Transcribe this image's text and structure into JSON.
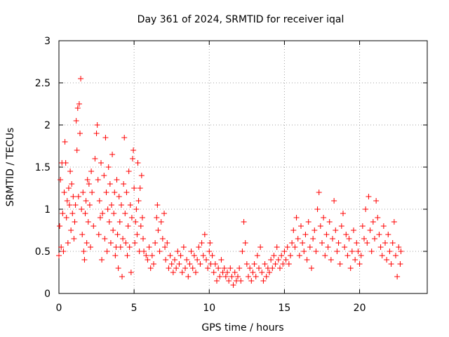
{
  "chart_data": {
    "type": "scatter",
    "title": "Day 361 of 2024, SRMTID for receiver iqal",
    "xlabel": "GPS time / hours",
    "ylabel": "SRMTID / TECUs",
    "xlim": [
      0,
      24.5
    ],
    "ylim": [
      0,
      3
    ],
    "xticks": [
      0,
      5,
      10,
      15,
      20
    ],
    "yticks": [
      0,
      0.5,
      1,
      1.5,
      2,
      2.5,
      3
    ],
    "xtick_labels": [
      "0",
      "5",
      "10",
      "15",
      "20"
    ],
    "ytick_labels": [
      "0",
      "0.5",
      "1",
      "1.5",
      "2",
      "2.5",
      "3"
    ],
    "grid": true,
    "marker": "+",
    "series": [
      {
        "name": "SRMTID",
        "color": "#ff0000",
        "points": [
          [
            0.0,
            0.45
          ],
          [
            0.05,
            0.8
          ],
          [
            0.1,
            1.35
          ],
          [
            0.15,
            0.55
          ],
          [
            0.2,
            1.55
          ],
          [
            0.25,
            0.95
          ],
          [
            0.3,
            0.5
          ],
          [
            0.35,
            1.2
          ],
          [
            0.4,
            1.8
          ],
          [
            0.45,
            1.55
          ],
          [
            0.5,
            0.9
          ],
          [
            0.55,
            1.1
          ],
          [
            0.6,
            0.6
          ],
          [
            0.65,
            1.25
          ],
          [
            0.7,
            1.05
          ],
          [
            0.75,
            1.45
          ],
          [
            0.8,
            0.75
          ],
          [
            0.85,
            1.3
          ],
          [
            0.9,
            0.95
          ],
          [
            0.95,
            1.15
          ],
          [
            1.0,
            0.65
          ],
          [
            1.05,
            0.85
          ],
          [
            1.1,
            1.05
          ],
          [
            1.15,
            2.05
          ],
          [
            1.2,
            1.7
          ],
          [
            1.25,
            2.2
          ],
          [
            1.3,
            1.15
          ],
          [
            1.35,
            2.25
          ],
          [
            1.4,
            1.9
          ],
          [
            1.45,
            2.55
          ],
          [
            1.5,
            1.0
          ],
          [
            1.55,
            0.7
          ],
          [
            1.6,
            1.2
          ],
          [
            1.65,
            0.5
          ],
          [
            1.7,
            0.4
          ],
          [
            1.75,
            0.95
          ],
          [
            1.8,
            1.1
          ],
          [
            1.85,
            0.6
          ],
          [
            1.9,
            1.35
          ],
          [
            1.95,
            0.85
          ],
          [
            2.0,
            1.3
          ],
          [
            2.05,
            1.05
          ],
          [
            2.1,
            0.55
          ],
          [
            2.15,
            1.45
          ],
          [
            2.2,
            1.2
          ],
          [
            2.3,
            0.8
          ],
          [
            2.4,
            1.6
          ],
          [
            2.5,
            1.9
          ],
          [
            2.55,
            2.0
          ],
          [
            2.6,
            1.35
          ],
          [
            2.65,
            0.7
          ],
          [
            2.7,
            1.1
          ],
          [
            2.75,
            0.9
          ],
          [
            2.8,
            1.55
          ],
          [
            2.85,
            0.4
          ],
          [
            2.9,
            0.95
          ],
          [
            3.0,
            1.4
          ],
          [
            3.05,
            0.65
          ],
          [
            3.1,
            1.85
          ],
          [
            3.15,
            1.2
          ],
          [
            3.2,
            0.5
          ],
          [
            3.25,
            1.0
          ],
          [
            3.3,
            1.5
          ],
          [
            3.35,
            0.85
          ],
          [
            3.4,
            1.3
          ],
          [
            3.45,
            0.6
          ],
          [
            3.5,
            1.05
          ],
          [
            3.55,
            1.65
          ],
          [
            3.6,
            0.75
          ],
          [
            3.65,
            0.95
          ],
          [
            3.7,
            1.2
          ],
          [
            3.75,
            0.45
          ],
          [
            3.8,
            0.55
          ],
          [
            3.85,
            1.35
          ],
          [
            3.9,
            0.7
          ],
          [
            3.95,
            0.3
          ],
          [
            4.0,
            1.15
          ],
          [
            4.05,
            0.85
          ],
          [
            4.1,
            0.55
          ],
          [
            4.15,
            1.05
          ],
          [
            4.2,
            0.2
          ],
          [
            4.25,
            0.65
          ],
          [
            4.3,
            1.3
          ],
          [
            4.35,
            1.85
          ],
          [
            4.4,
            0.95
          ],
          [
            4.45,
            0.6
          ],
          [
            4.5,
            1.2
          ],
          [
            4.55,
            0.45
          ],
          [
            4.6,
            0.8
          ],
          [
            4.65,
            1.45
          ],
          [
            4.7,
            0.55
          ],
          [
            4.75,
            1.05
          ],
          [
            4.8,
            0.25
          ],
          [
            4.85,
            0.9
          ],
          [
            4.9,
            1.6
          ],
          [
            4.95,
            1.7
          ],
          [
            5.0,
            1.25
          ],
          [
            5.05,
            0.6
          ],
          [
            5.1,
            0.85
          ],
          [
            5.15,
            1.0
          ],
          [
            5.2,
            0.7
          ],
          [
            5.25,
            1.55
          ],
          [
            5.3,
            1.1
          ],
          [
            5.35,
            0.5
          ],
          [
            5.4,
            1.25
          ],
          [
            5.45,
            0.8
          ],
          [
            5.5,
            1.4
          ],
          [
            5.55,
            0.9
          ],
          [
            5.6,
            0.65
          ],
          [
            5.65,
            0.5
          ],
          [
            5.8,
            0.45
          ],
          [
            5.9,
            0.4
          ],
          [
            6.0,
            0.55
          ],
          [
            6.1,
            0.3
          ],
          [
            6.2,
            0.45
          ],
          [
            6.3,
            0.35
          ],
          [
            6.4,
            0.6
          ],
          [
            6.5,
            0.9
          ],
          [
            6.55,
            1.05
          ],
          [
            6.6,
            0.75
          ],
          [
            6.7,
            0.5
          ],
          [
            6.8,
            0.85
          ],
          [
            6.9,
            0.65
          ],
          [
            7.0,
            0.95
          ],
          [
            7.05,
            0.55
          ],
          [
            7.1,
            0.4
          ],
          [
            7.2,
            0.6
          ],
          [
            7.3,
            0.3
          ],
          [
            7.4,
            0.45
          ],
          [
            7.5,
            0.35
          ],
          [
            7.6,
            0.25
          ],
          [
            7.7,
            0.4
          ],
          [
            7.8,
            0.3
          ],
          [
            7.9,
            0.5
          ],
          [
            8.0,
            0.35
          ],
          [
            8.1,
            0.45
          ],
          [
            8.2,
            0.25
          ],
          [
            8.3,
            0.55
          ],
          [
            8.4,
            0.3
          ],
          [
            8.5,
            0.4
          ],
          [
            8.6,
            0.2
          ],
          [
            8.7,
            0.35
          ],
          [
            8.8,
            0.5
          ],
          [
            8.9,
            0.3
          ],
          [
            9.0,
            0.45
          ],
          [
            9.1,
            0.25
          ],
          [
            9.2,
            0.4
          ],
          [
            9.3,
            0.55
          ],
          [
            9.4,
            0.35
          ],
          [
            9.5,
            0.6
          ],
          [
            9.6,
            0.45
          ],
          [
            9.7,
            0.7
          ],
          [
            9.8,
            0.4
          ],
          [
            9.9,
            0.3
          ],
          [
            10.0,
            0.5
          ],
          [
            10.05,
            0.6
          ],
          [
            10.1,
            0.35
          ],
          [
            10.2,
            0.45
          ],
          [
            10.3,
            0.25
          ],
          [
            10.4,
            0.35
          ],
          [
            10.5,
            0.15
          ],
          [
            10.6,
            0.3
          ],
          [
            10.7,
            0.2
          ],
          [
            10.8,
            0.4
          ],
          [
            10.9,
            0.25
          ],
          [
            11.0,
            0.3
          ],
          [
            11.1,
            0.2
          ],
          [
            11.2,
            0.25
          ],
          [
            11.3,
            0.15
          ],
          [
            11.4,
            0.3
          ],
          [
            11.5,
            0.2
          ],
          [
            11.6,
            0.1
          ],
          [
            11.7,
            0.25
          ],
          [
            11.8,
            0.15
          ],
          [
            11.9,
            0.2
          ],
          [
            12.0,
            0.3
          ],
          [
            12.1,
            0.15
          ],
          [
            12.2,
            0.5
          ],
          [
            12.3,
            0.85
          ],
          [
            12.4,
            0.6
          ],
          [
            12.5,
            0.35
          ],
          [
            12.6,
            0.2
          ],
          [
            12.7,
            0.3
          ],
          [
            12.8,
            0.15
          ],
          [
            12.9,
            0.25
          ],
          [
            13.0,
            0.35
          ],
          [
            13.1,
            0.2
          ],
          [
            13.2,
            0.45
          ],
          [
            13.3,
            0.3
          ],
          [
            13.4,
            0.55
          ],
          [
            13.5,
            0.25
          ],
          [
            13.6,
            0.15
          ],
          [
            13.7,
            0.35
          ],
          [
            13.8,
            0.2
          ],
          [
            13.9,
            0.3
          ],
          [
            14.0,
            0.25
          ],
          [
            14.1,
            0.4
          ],
          [
            14.2,
            0.3
          ],
          [
            14.3,
            0.45
          ],
          [
            14.4,
            0.35
          ],
          [
            14.5,
            0.55
          ],
          [
            14.6,
            0.4
          ],
          [
            14.7,
            0.3
          ],
          [
            14.8,
            0.45
          ],
          [
            14.9,
            0.35
          ],
          [
            15.0,
            0.5
          ],
          [
            15.1,
            0.4
          ],
          [
            15.2,
            0.55
          ],
          [
            15.3,
            0.35
          ],
          [
            15.4,
            0.45
          ],
          [
            15.5,
            0.6
          ],
          [
            15.6,
            0.75
          ],
          [
            15.7,
            0.55
          ],
          [
            15.8,
            0.9
          ],
          [
            15.9,
            0.65
          ],
          [
            16.0,
            0.45
          ],
          [
            16.1,
            0.8
          ],
          [
            16.2,
            0.6
          ],
          [
            16.3,
            0.5
          ],
          [
            16.4,
            0.7
          ],
          [
            16.5,
            0.4
          ],
          [
            16.6,
            0.85
          ],
          [
            16.7,
            0.55
          ],
          [
            16.8,
            0.3
          ],
          [
            16.9,
            0.65
          ],
          [
            17.0,
            0.75
          ],
          [
            17.1,
            0.5
          ],
          [
            17.2,
            1.0
          ],
          [
            17.3,
            1.2
          ],
          [
            17.4,
            0.8
          ],
          [
            17.5,
            0.6
          ],
          [
            17.6,
            0.9
          ],
          [
            17.7,
            0.45
          ],
          [
            17.8,
            0.7
          ],
          [
            17.9,
            0.55
          ],
          [
            18.0,
            0.85
          ],
          [
            18.1,
            0.4
          ],
          [
            18.2,
            0.65
          ],
          [
            18.3,
            1.1
          ],
          [
            18.4,
            0.75
          ],
          [
            18.5,
            0.5
          ],
          [
            18.6,
            0.6
          ],
          [
            18.7,
            0.35
          ],
          [
            18.8,
            0.8
          ],
          [
            18.9,
            0.95
          ],
          [
            19.0,
            0.55
          ],
          [
            19.1,
            0.7
          ],
          [
            19.2,
            0.45
          ],
          [
            19.3,
            0.65
          ],
          [
            19.4,
            0.3
          ],
          [
            19.5,
            0.5
          ],
          [
            19.6,
            0.75
          ],
          [
            19.7,
            0.4
          ],
          [
            19.8,
            0.6
          ],
          [
            19.9,
            0.5
          ],
          [
            20.0,
            0.35
          ],
          [
            20.1,
            0.45
          ],
          [
            20.2,
            0.8
          ],
          [
            20.3,
            0.65
          ],
          [
            20.4,
            1.0
          ],
          [
            20.5,
            0.6
          ],
          [
            20.6,
            1.15
          ],
          [
            20.7,
            0.75
          ],
          [
            20.8,
            0.5
          ],
          [
            20.9,
            0.85
          ],
          [
            21.0,
            0.65
          ],
          [
            21.1,
            1.1
          ],
          [
            21.2,
            0.9
          ],
          [
            21.3,
            0.7
          ],
          [
            21.4,
            0.55
          ],
          [
            21.5,
            0.45
          ],
          [
            21.6,
            0.8
          ],
          [
            21.7,
            0.6
          ],
          [
            21.8,
            0.4
          ],
          [
            21.9,
            0.7
          ],
          [
            22.0,
            0.5
          ],
          [
            22.1,
            0.35
          ],
          [
            22.2,
            0.6
          ],
          [
            22.3,
            0.85
          ],
          [
            22.4,
            0.45
          ],
          [
            22.5,
            0.2
          ],
          [
            22.6,
            0.55
          ],
          [
            22.7,
            0.35
          ],
          [
            22.75,
            0.5
          ]
        ]
      }
    ]
  }
}
